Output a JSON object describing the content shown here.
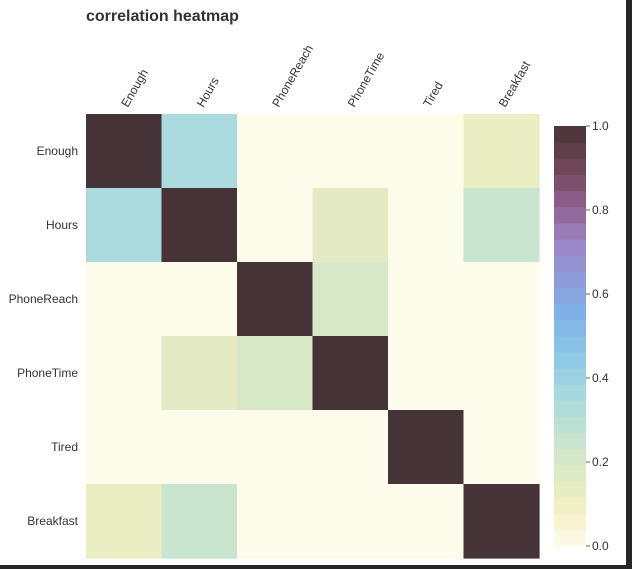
{
  "title": "correlation heatmap",
  "colors": {
    "low": "#fcfae8",
    "high": "#463337",
    "colorbar_stops": [
      "#fdfbea",
      "#f2f0c3",
      "#dce9c4",
      "#c2e2d2",
      "#a6d8df",
      "#8cc8e5",
      "#7eb3e8",
      "#8e9bd9",
      "#9d84c4",
      "#8e5e8a",
      "#6d4555",
      "#463337"
    ]
  },
  "chart_data": {
    "type": "heatmap",
    "title": "correlation heatmap",
    "x_labels": [
      "Enough",
      "Hours",
      "PhoneReach",
      "PhoneTime",
      "Tired",
      "Breakfast"
    ],
    "y_labels": [
      "Enough",
      "Hours",
      "PhoneReach",
      "PhoneTime",
      "Tired",
      "Breakfast"
    ],
    "values": [
      [
        1.0,
        0.35,
        0.0,
        0.0,
        0.0,
        0.12
      ],
      [
        0.35,
        1.0,
        0.0,
        0.15,
        0.0,
        0.25
      ],
      [
        0.0,
        0.0,
        1.0,
        0.2,
        0.0,
        0.0
      ],
      [
        0.0,
        0.15,
        0.2,
        1.0,
        0.0,
        0.0
      ],
      [
        0.0,
        0.0,
        0.0,
        0.0,
        1.0,
        0.0
      ],
      [
        0.12,
        0.25,
        0.0,
        0.0,
        0.0,
        1.0
      ]
    ],
    "colorbar": {
      "range": [
        0.0,
        1.0
      ],
      "ticks": [
        0.0,
        0.2,
        0.4,
        0.6,
        0.8,
        1.0
      ],
      "tick_labels": [
        "0.0",
        "0.2",
        "0.4",
        "0.6",
        "0.8",
        "1.0"
      ]
    }
  }
}
